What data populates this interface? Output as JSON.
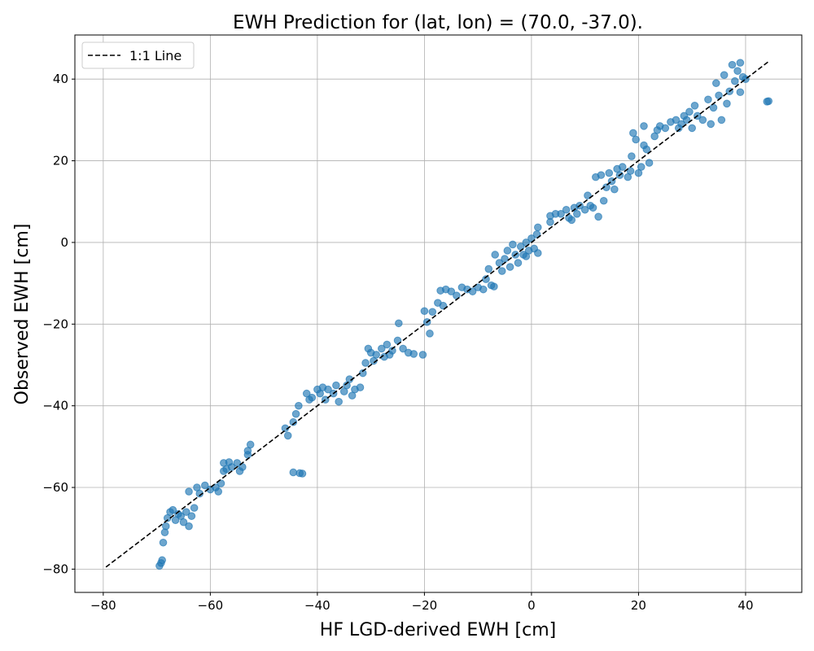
{
  "chart_data": {
    "type": "scatter",
    "title": "EWH Prediction for (lat, lon) = (70.0, -37.0).",
    "xlabel": "HF LGD-derived EWH [cm]",
    "ylabel": "Observed EWH [cm]",
    "xlim": [
      -85.3,
      50.5
    ],
    "ylim": [
      -85.7,
      50.8
    ],
    "xticks": [
      -80,
      -60,
      -40,
      -20,
      0,
      20,
      40
    ],
    "yticks": [
      -80,
      -60,
      -40,
      -20,
      0,
      20,
      40
    ],
    "grid": true,
    "legend": {
      "placement": "top-left",
      "entries": [
        "1:1 Line"
      ]
    },
    "colors": {
      "points": "#1f77b4",
      "line": "#000000",
      "grid": "#b0b0b0"
    },
    "reference_line": {
      "name": "1:1 Line",
      "style": "dashed",
      "x": [
        -79.5,
        44.3
      ],
      "y": [
        -79.5,
        44.3
      ]
    },
    "points": [
      [
        -69.5,
        -79.2
      ],
      [
        -69.2,
        -78.5
      ],
      [
        -69,
        -77.8
      ],
      [
        -68.8,
        -73.5
      ],
      [
        -68.5,
        -71
      ],
      [
        -68.3,
        -69.5
      ],
      [
        -68,
        -67.5
      ],
      [
        -67.5,
        -66
      ],
      [
        -67,
        -65.5
      ],
      [
        -66.5,
        -68
      ],
      [
        -66,
        -66.5
      ],
      [
        -65.5,
        -67
      ],
      [
        -65,
        -68.5
      ],
      [
        -64.5,
        -66
      ],
      [
        -64,
        -69.5
      ],
      [
        -64,
        -61
      ],
      [
        -63.5,
        -67
      ],
      [
        -63,
        -65
      ],
      [
        -62.5,
        -60
      ],
      [
        -62,
        -61.5
      ],
      [
        -61,
        -59.5
      ],
      [
        -60,
        -60.5
      ],
      [
        -59,
        -60
      ],
      [
        -58.5,
        -61
      ],
      [
        -58,
        -59
      ],
      [
        -57.5,
        -56
      ],
      [
        -57.5,
        -54
      ],
      [
        -57,
        -55.5
      ],
      [
        -56.5,
        -53.8
      ],
      [
        -56,
        -55
      ],
      [
        -55,
        -54
      ],
      [
        -54.5,
        -56
      ],
      [
        -54,
        -55
      ],
      [
        -53,
        -52
      ],
      [
        -52.5,
        -49.5
      ],
      [
        -53,
        -51
      ],
      [
        -46,
        -45.5
      ],
      [
        -45.5,
        -47.3
      ],
      [
        -44.5,
        -44
      ],
      [
        -44,
        -42
      ],
      [
        -43.5,
        -40
      ],
      [
        -44.5,
        -56.3
      ],
      [
        -43.3,
        -56.5
      ],
      [
        -42.8,
        -56.6
      ],
      [
        -42,
        -37
      ],
      [
        -41.5,
        -38.5
      ],
      [
        -41,
        -38
      ],
      [
        -40,
        -36
      ],
      [
        -39.5,
        -37
      ],
      [
        -39,
        -35.5
      ],
      [
        -38.5,
        -38.5
      ],
      [
        -38,
        -36
      ],
      [
        -37,
        -37
      ],
      [
        -36.5,
        -35
      ],
      [
        -36,
        -39
      ],
      [
        -35,
        -36.5
      ],
      [
        -34.5,
        -35
      ],
      [
        -34,
        -33.5
      ],
      [
        -33.5,
        -37.5
      ],
      [
        -33,
        -36
      ],
      [
        -32,
        -35.5
      ],
      [
        -31.5,
        -32
      ],
      [
        -31,
        -29.5
      ],
      [
        -30.5,
        -26
      ],
      [
        -30,
        -27
      ],
      [
        -29.5,
        -29
      ],
      [
        -29,
        -27.5
      ],
      [
        -28,
        -26
      ],
      [
        -27.5,
        -28
      ],
      [
        -27,
        -25
      ],
      [
        -26.5,
        -27.5
      ],
      [
        -26,
        -26.5
      ],
      [
        -25,
        -24
      ],
      [
        -24.8,
        -19.8
      ],
      [
        -24,
        -26
      ],
      [
        -23,
        -27
      ],
      [
        -22,
        -27.3
      ],
      [
        -20.3,
        -27.5
      ],
      [
        -20,
        -16.8
      ],
      [
        -19.5,
        -19.5
      ],
      [
        -19,
        -22.3
      ],
      [
        -18.5,
        -17
      ],
      [
        -17.5,
        -14.8
      ],
      [
        -17,
        -11.8
      ],
      [
        -16.5,
        -15.5
      ],
      [
        -16,
        -11.5
      ],
      [
        -15,
        -12
      ],
      [
        -14,
        -13
      ],
      [
        -13,
        -11
      ],
      [
        -12,
        -11.5
      ],
      [
        -11,
        -12
      ],
      [
        -10,
        -11
      ],
      [
        -9,
        -11.5
      ],
      [
        -8.5,
        -9
      ],
      [
        -8,
        -6.5
      ],
      [
        -7.5,
        -10.5
      ],
      [
        -7,
        -10.8
      ],
      [
        -6.8,
        -3
      ],
      [
        -6,
        -5
      ],
      [
        -5.5,
        -7
      ],
      [
        -5,
        -4
      ],
      [
        -4.5,
        -2
      ],
      [
        -4,
        -6
      ],
      [
        -3.5,
        -0.5
      ],
      [
        -3,
        -3
      ],
      [
        -2.5,
        -5
      ],
      [
        -2,
        -1
      ],
      [
        -1.5,
        -3
      ],
      [
        -1,
        0
      ],
      [
        -0.5,
        -2
      ],
      [
        0,
        1
      ],
      [
        0.5,
        -1.5
      ],
      [
        1,
        2
      ],
      [
        1.2,
        3.7
      ],
      [
        1.2,
        -2.6
      ],
      [
        -1,
        -3.4
      ],
      [
        3.5,
        6.5
      ],
      [
        3.5,
        5
      ],
      [
        4.5,
        7
      ],
      [
        5.5,
        7
      ],
      [
        6.5,
        8
      ],
      [
        7,
        6
      ],
      [
        7.5,
        5.5
      ],
      [
        8,
        8.5
      ],
      [
        8.5,
        7
      ],
      [
        9,
        9
      ],
      [
        10,
        8
      ],
      [
        10.5,
        11.5
      ],
      [
        11,
        9
      ],
      [
        11.5,
        8.5
      ],
      [
        12,
        16
      ],
      [
        12.5,
        6.3
      ],
      [
        13,
        16.5
      ],
      [
        13.5,
        10.2
      ],
      [
        14,
        13.5
      ],
      [
        14.5,
        17
      ],
      [
        15,
        15
      ],
      [
        15.5,
        13
      ],
      [
        16,
        18
      ],
      [
        16.5,
        16.5
      ],
      [
        17,
        18.5
      ],
      [
        18,
        16
      ],
      [
        18.5,
        17.5
      ],
      [
        18.7,
        21.1
      ],
      [
        19,
        26.8
      ],
      [
        19.5,
        25.2
      ],
      [
        20,
        17
      ],
      [
        20.5,
        18.5
      ],
      [
        21,
        23.8
      ],
      [
        21,
        28.5
      ],
      [
        21.5,
        22.8
      ],
      [
        22,
        19.5
      ],
      [
        23,
        26
      ],
      [
        23.5,
        27.5
      ],
      [
        24,
        28.5
      ],
      [
        25,
        28
      ],
      [
        26,
        29.5
      ],
      [
        27,
        30
      ],
      [
        27.5,
        28
      ],
      [
        28,
        29
      ],
      [
        28.5,
        31
      ],
      [
        29,
        30
      ],
      [
        29.5,
        32
      ],
      [
        30,
        28
      ],
      [
        30.5,
        33.5
      ],
      [
        31,
        31
      ],
      [
        32,
        30
      ],
      [
        33,
        35
      ],
      [
        33.5,
        29
      ],
      [
        34,
        33
      ],
      [
        34.5,
        39
      ],
      [
        35,
        36
      ],
      [
        35.5,
        30
      ],
      [
        36,
        41
      ],
      [
        36.5,
        34
      ],
      [
        37,
        37
      ],
      [
        37.5,
        43.5
      ],
      [
        38,
        39.5
      ],
      [
        38.5,
        42
      ],
      [
        39,
        44
      ],
      [
        39.5,
        40.5
      ],
      [
        39,
        36.8
      ],
      [
        40,
        40
      ],
      [
        44,
        34.5
      ],
      [
        44.3,
        34.6
      ]
    ]
  }
}
